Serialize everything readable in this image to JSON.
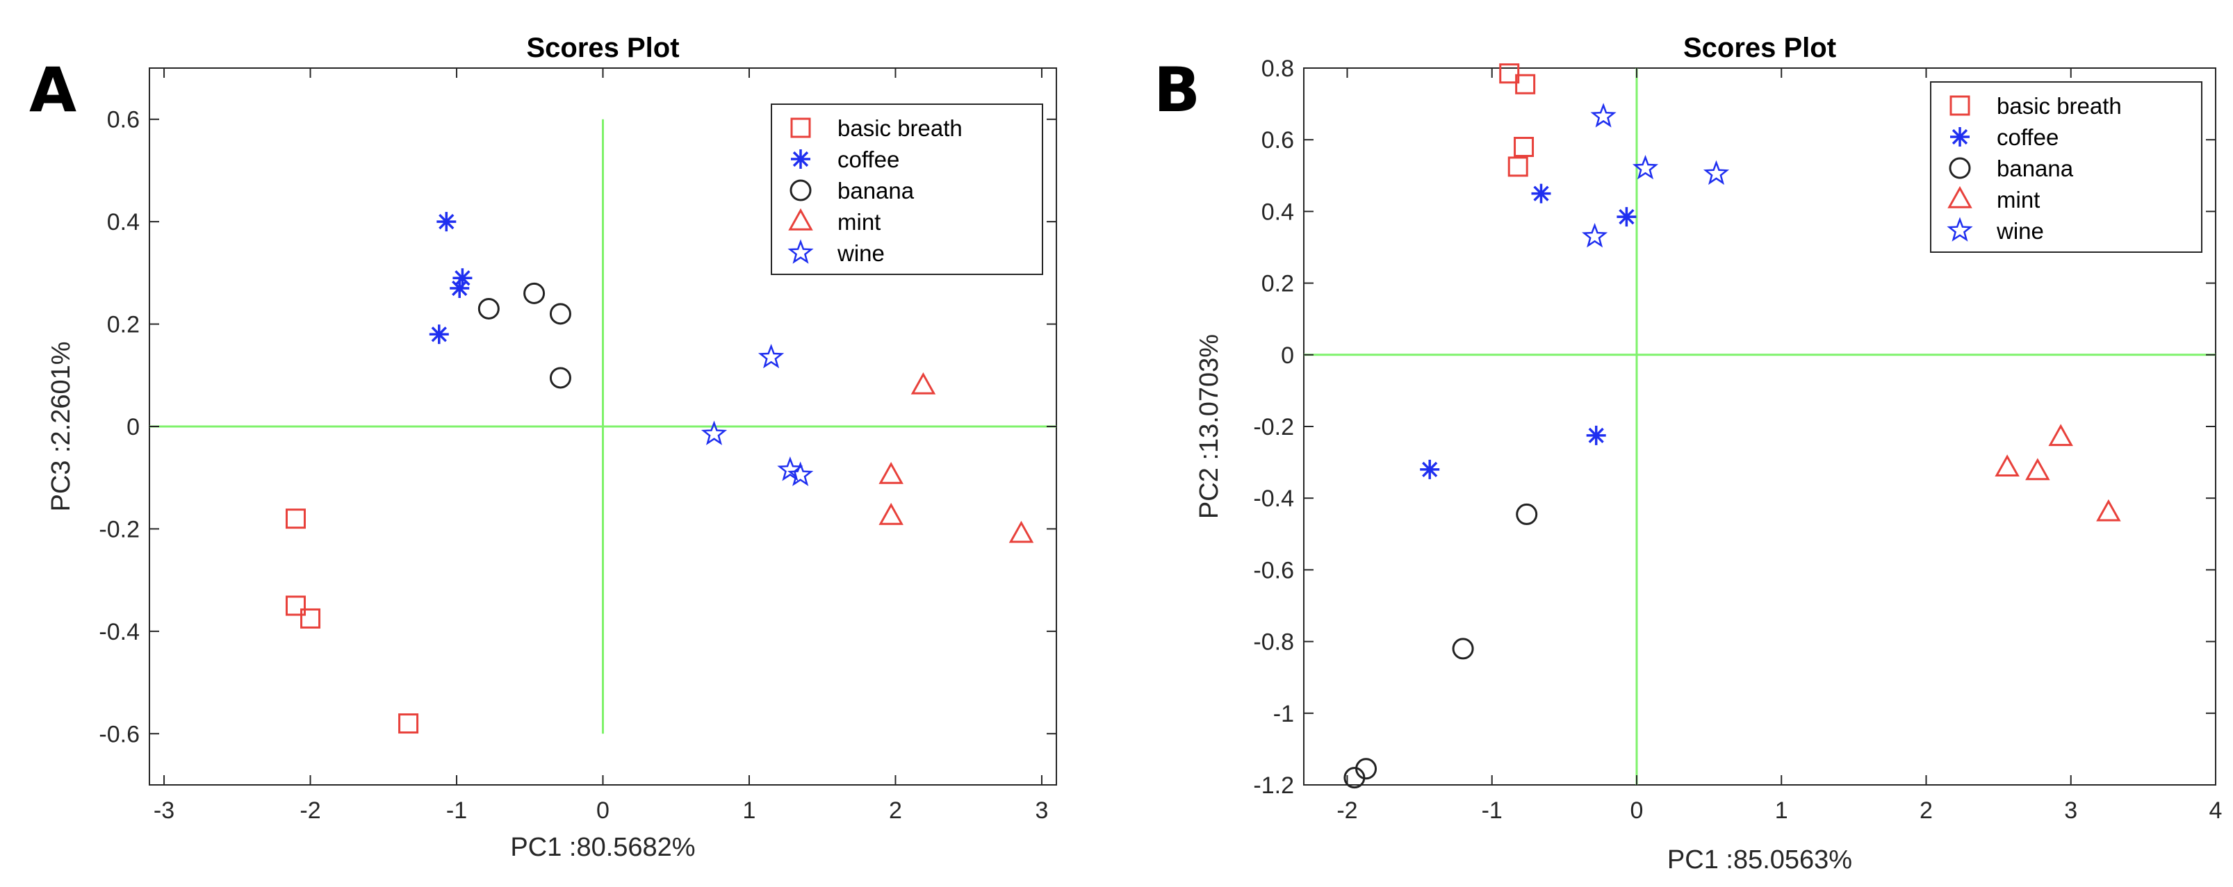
{
  "chart_data": [
    {
      "panel_label": "A",
      "type": "scatter",
      "title": "Scores Plot",
      "xlabel": "PC1 :80.5682%",
      "ylabel": "PC3 :2.2601%",
      "xlim": [
        -3.1,
        3.1
      ],
      "ylim": [
        -0.7,
        0.7
      ],
      "xticks": [
        -3,
        -2,
        -1,
        0,
        1,
        2,
        3
      ],
      "xtick_labels": [
        "-3",
        "-2",
        "-1",
        "0",
        "1",
        "2",
        "3"
      ],
      "yticks": [
        -0.6,
        -0.4,
        -0.2,
        0,
        0.2,
        0.4,
        0.6
      ],
      "ytick_labels": [
        "-0.6",
        "-0.4",
        "-0.2",
        "0",
        "0.2",
        "0.4",
        "0.6"
      ],
      "crosshair": {
        "h": {
          "y": 0,
          "x_range": [
            -3.1,
            3.1
          ]
        },
        "v": {
          "x": 0,
          "y_range": [
            -0.6,
            0.6
          ]
        }
      },
      "legend_position": "top-right",
      "series": [
        {
          "name": "basic breath",
          "marker": "square",
          "color": "#e8413b",
          "points": [
            [
              -2.1,
              -0.18
            ],
            [
              -2.1,
              -0.35
            ],
            [
              -2.0,
              -0.375
            ],
            [
              -1.33,
              -0.58
            ]
          ]
        },
        {
          "name": "coffee",
          "marker": "asterisk",
          "color": "#1f2ff0",
          "points": [
            [
              -1.07,
              0.4
            ],
            [
              -0.98,
              0.27
            ],
            [
              -0.96,
              0.29
            ],
            [
              -1.12,
              0.18
            ]
          ]
        },
        {
          "name": "banana",
          "marker": "circle",
          "color": "#222222",
          "points": [
            [
              -0.78,
              0.23
            ],
            [
              -0.47,
              0.26
            ],
            [
              -0.29,
              0.22
            ],
            [
              -0.29,
              0.095
            ]
          ]
        },
        {
          "name": "mint",
          "marker": "triangle",
          "color": "#e8413b",
          "points": [
            [
              2.19,
              0.08
            ],
            [
              1.97,
              -0.095
            ],
            [
              1.97,
              -0.175
            ],
            [
              2.86,
              -0.21
            ]
          ]
        },
        {
          "name": "wine",
          "marker": "star",
          "color": "#1f2ff0",
          "points": [
            [
              1.15,
              0.135
            ],
            [
              0.76,
              -0.015
            ],
            [
              1.28,
              -0.085
            ],
            [
              1.35,
              -0.095
            ]
          ]
        }
      ]
    },
    {
      "panel_label": "B",
      "type": "scatter",
      "title": "Scores Plot",
      "xlabel": "PC1 :85.0563%",
      "ylabel": "PC2 :13.0703%",
      "xlim": [
        -2.3,
        4
      ],
      "ylim": [
        -1.2,
        0.8
      ],
      "xticks": [
        -2,
        -1,
        0,
        1,
        2,
        3,
        4
      ],
      "xtick_labels": [
        "-2",
        "-1",
        "0",
        "1",
        "2",
        "3",
        "4"
      ],
      "yticks": [
        -1.2,
        -1,
        -0.8,
        -0.6,
        -0.4,
        -0.2,
        0,
        0.2,
        0.4,
        0.6,
        0.8
      ],
      "ytick_labels": [
        "-1.2",
        "-1",
        "-0.8",
        "-0.6",
        "-0.4",
        "-0.2",
        "0",
        "0.2",
        "0.4",
        "0.6",
        "0.8"
      ],
      "crosshair": {
        "h": {
          "y": 0,
          "x_range": [
            -2.3,
            4
          ]
        },
        "v": {
          "x": 0,
          "y_range": [
            -1.2,
            0.8
          ]
        }
      },
      "legend_position": "top-right",
      "series": [
        {
          "name": "basic breath",
          "marker": "square",
          "color": "#e8413b",
          "points": [
            [
              -0.88,
              0.785
            ],
            [
              -0.77,
              0.755
            ],
            [
              -0.78,
              0.58
            ],
            [
              -0.82,
              0.525
            ]
          ]
        },
        {
          "name": "coffee",
          "marker": "asterisk",
          "color": "#1f2ff0",
          "points": [
            [
              -0.66,
              0.45
            ],
            [
              -0.07,
              0.385
            ],
            [
              -1.43,
              -0.32
            ],
            [
              -0.28,
              -0.225
            ]
          ]
        },
        {
          "name": "banana",
          "marker": "circle",
          "color": "#222222",
          "points": [
            [
              -0.76,
              -0.445
            ],
            [
              -1.2,
              -0.82
            ],
            [
              -1.95,
              -1.18
            ],
            [
              -1.87,
              -1.155
            ]
          ]
        },
        {
          "name": "mint",
          "marker": "triangle",
          "color": "#e8413b",
          "points": [
            [
              2.93,
              -0.23
            ],
            [
              2.56,
              -0.315
            ],
            [
              2.77,
              -0.325
            ],
            [
              3.26,
              -0.44
            ]
          ]
        },
        {
          "name": "wine",
          "marker": "star",
          "color": "#1f2ff0",
          "points": [
            [
              -0.23,
              0.665
            ],
            [
              0.06,
              0.52
            ],
            [
              0.55,
              0.505
            ],
            [
              -0.29,
              0.33
            ]
          ]
        }
      ]
    }
  ]
}
